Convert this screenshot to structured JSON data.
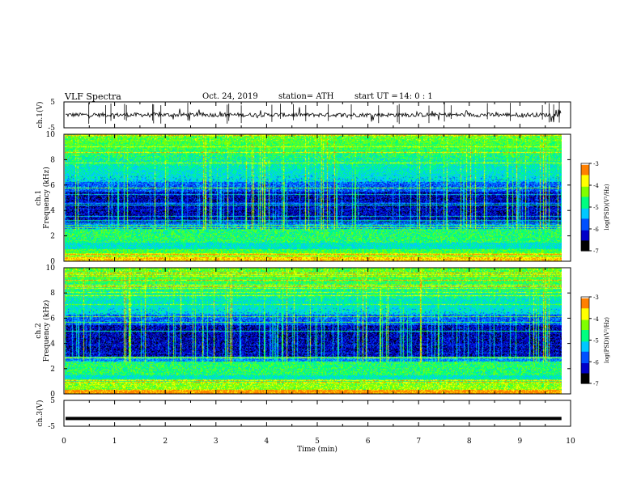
{
  "header": {
    "title": "VLF  Spectra",
    "date": "Oct. 24, 2019",
    "station": "station= ATH",
    "start_ut_label": "start  UT  =",
    "start_ut_value": "14: 0   : 1"
  },
  "chart_data": [
    {
      "type": "line",
      "panel": "ch1-waveform",
      "ylabel": "ch.1(V)",
      "ylim": [
        -5,
        5
      ],
      "yticks": [
        "5",
        "-5"
      ],
      "xlim": [
        0,
        10
      ],
      "trace_mean": 0,
      "trace_amplitude": 0.8
    },
    {
      "type": "heatmap",
      "panel": "ch1-spectrogram",
      "ylabel_top": "ch.1",
      "ylabel": "Frequency  (kHz)",
      "ylim": [
        0,
        10
      ],
      "yticks": [
        "0",
        "2",
        "4",
        "6",
        "8",
        "10"
      ],
      "xlim": [
        0,
        10
      ],
      "colorbar": {
        "label": "log(PSD)(V²/Hz)",
        "ticks": [
          "-3",
          "-4",
          "-5",
          "-6",
          "-7"
        ],
        "range": [
          -7,
          -3
        ]
      }
    },
    {
      "type": "heatmap",
      "panel": "ch2-spectrogram",
      "ylabel_top": "ch.2",
      "ylabel": "Frequency  (kHz)",
      "ylim": [
        0,
        10
      ],
      "yticks": [
        "0",
        "2",
        "4",
        "6",
        "8",
        "10"
      ],
      "xlim": [
        0,
        10
      ],
      "colorbar": {
        "label": "log(PSD)(V²/Hz)",
        "ticks": [
          "-3",
          "-4",
          "-5",
          "-6",
          "-7"
        ],
        "range": [
          -7,
          -3
        ]
      }
    },
    {
      "type": "line",
      "panel": "ch3-waveform",
      "ylabel": "ch.3(V)",
      "ylim": [
        -5,
        5
      ],
      "yticks": [
        "5",
        "-5"
      ],
      "xlim": [
        0,
        10
      ],
      "xlabel": "Time  (min)",
      "xticks": [
        "0",
        "1",
        "2",
        "3",
        "4",
        "5",
        "6",
        "7",
        "8",
        "9",
        "10"
      ],
      "trace_mean": -2
    }
  ],
  "colors": {
    "colormap": [
      "#000000",
      "#0000c8",
      "#0050ff",
      "#00c8ff",
      "#00ff80",
      "#80ff00",
      "#ffff00",
      "#ff8000",
      "#ff0000",
      "#ffffff"
    ]
  }
}
